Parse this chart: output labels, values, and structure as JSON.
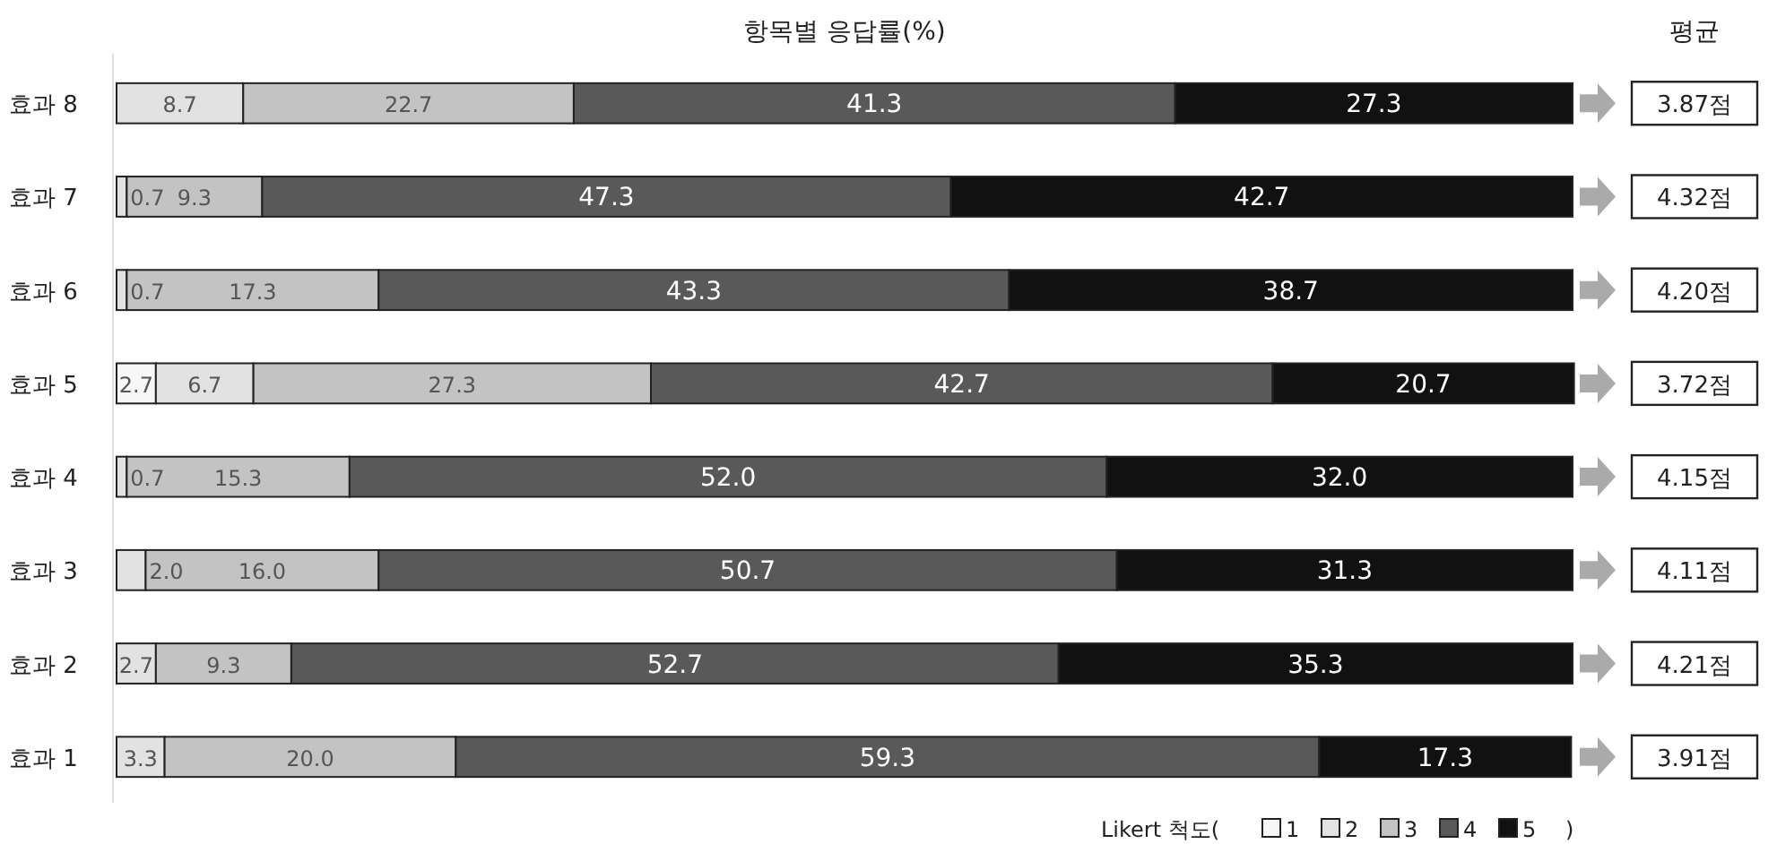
{
  "chart_data": {
    "type": "bar",
    "orientation": "horizontal",
    "stacked": true,
    "title": "항목별 응답률(%)",
    "legend_title": "Likert 척도(",
    "legend": "bottom right",
    "tick_labels": "y",
    "xlim": [
      0,
      100
    ],
    "categories": [
      "효과 8",
      "효과 7",
      "효과 6",
      "효과 5",
      "효과 4",
      "효과 3",
      "효과 2",
      "효과 1"
    ],
    "series": [
      {
        "name": "1",
        "color": "#f7f7f7",
        "values": [
          null,
          null,
          null,
          2.7,
          null,
          null,
          null,
          null
        ],
        "value_labels": [
          null,
          null,
          null,
          "2.7",
          null,
          null,
          null,
          null
        ]
      },
      {
        "name": "2",
        "color": "#e2e2e2",
        "values": [
          8.7,
          0.7,
          0.7,
          6.7,
          0.7,
          2.0,
          2.7,
          3.3
        ],
        "value_labels": [
          "8.7",
          "0.7",
          "0.7",
          "6.7",
          "0.7",
          "2.0",
          "2.7",
          "3.3"
        ]
      },
      {
        "name": "3",
        "color": "#c3c3c3",
        "values": [
          22.7,
          9.3,
          17.3,
          27.3,
          15.3,
          16.0,
          9.3,
          20.0
        ],
        "value_labels": [
          "22.7",
          "9.3",
          "17.3",
          "27.3",
          "15.3",
          "16.0",
          "9.3",
          "20.0"
        ]
      },
      {
        "name": "4",
        "color": "#595959",
        "values": [
          41.3,
          47.3,
          43.3,
          42.7,
          52.0,
          50.7,
          52.7,
          59.3
        ],
        "value_labels": [
          "41.3",
          "47.3",
          "43.3",
          "42.7",
          "52.0",
          "50.7",
          "52.7",
          "59.3"
        ]
      },
      {
        "name": "5",
        "color": "#111111",
        "values": [
          27.3,
          42.7,
          38.7,
          20.7,
          32.0,
          31.3,
          35.3,
          17.3
        ],
        "value_labels": [
          "27.3",
          "42.7",
          "38.7",
          "20.7",
          "32.0",
          "31.3",
          "35.3",
          "17.3"
        ]
      }
    ],
    "annotations": [
      "평균",
      ")",
      "3.87점",
      "4.32점",
      "4.20점",
      "3.72점",
      "4.15점",
      "4.11점",
      "4.21점",
      "3.91점"
    ]
  }
}
